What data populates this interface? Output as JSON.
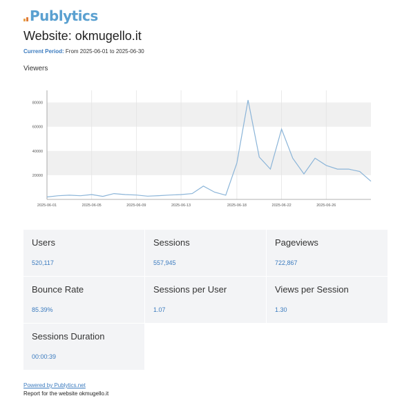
{
  "brand": {
    "logo_text": "Publytics"
  },
  "header": {
    "title": "Website: okmugello.it",
    "period_label": "Current Period:",
    "period_value": "From 2025-06-01 to 2025-06-30"
  },
  "section": {
    "viewers_label": "Viewers"
  },
  "chart_data": {
    "type": "line",
    "xlabel": "",
    "ylabel": "",
    "ylim": [
      0,
      90000
    ],
    "y_ticks": [
      "20000",
      "40000",
      "60000",
      "80000"
    ],
    "x_ticks": [
      "2025-06-01",
      "2025-06-05",
      "2025-06-09",
      "2025-06-13",
      "2025-06-18",
      "2025-06-22",
      "2025-06-26"
    ],
    "x": [
      "2025-06-01",
      "2025-06-02",
      "2025-06-03",
      "2025-06-04",
      "2025-06-05",
      "2025-06-06",
      "2025-06-07",
      "2025-06-08",
      "2025-06-09",
      "2025-06-10",
      "2025-06-11",
      "2025-06-12",
      "2025-06-13",
      "2025-06-14",
      "2025-06-15",
      "2025-06-16",
      "2025-06-17",
      "2025-06-18",
      "2025-06-19",
      "2025-06-20",
      "2025-06-21",
      "2025-06-22",
      "2025-06-23",
      "2025-06-24",
      "2025-06-25",
      "2025-06-26",
      "2025-06-27",
      "2025-06-28",
      "2025-06-29",
      "2025-06-30"
    ],
    "values": [
      2000,
      3000,
      3500,
      3000,
      4000,
      2500,
      4800,
      4000,
      3600,
      2700,
      3100,
      3600,
      4000,
      4800,
      11000,
      6000,
      3500,
      30000,
      82000,
      35000,
      25000,
      58000,
      34000,
      21000,
      34000,
      28000,
      25000,
      25000,
      23000,
      15000
    ],
    "series_color": "#8ab4d8",
    "grid_band_color": "#f0f0f0"
  },
  "metrics": [
    {
      "label": "Users",
      "value": "520,117"
    },
    {
      "label": "Sessions",
      "value": "557,945"
    },
    {
      "label": "Pageviews",
      "value": "722,867"
    },
    {
      "label": "Bounce Rate",
      "value": "85.39%"
    },
    {
      "label": "Sessions per User",
      "value": "1.07"
    },
    {
      "label": "Views per Session",
      "value": "1.30"
    },
    {
      "label": "Sessions Duration",
      "value": "00:00:39"
    }
  ],
  "footer": {
    "powered_by": "Powered by Publytics.net",
    "report_note": "Report for the website okmugello.it"
  }
}
